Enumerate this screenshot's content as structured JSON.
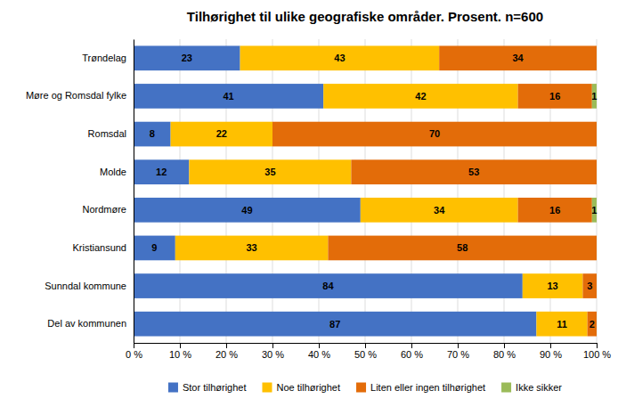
{
  "chart_data": {
    "type": "bar",
    "orientation": "horizontal",
    "stacked": true,
    "title": "Tilhørighet til ulike geografiske områder. Prosent. n=600",
    "categories": [
      "Trøndelag",
      "Møre og Romsdal fylke",
      "Romsdal",
      "Molde",
      "Nordmøre",
      "Kristiansund",
      "Sunndal kommune",
      "Del av kommunen"
    ],
    "series": [
      {
        "name": "Stor tilhørighet",
        "color": "#4472C4",
        "values": [
          23,
          41,
          8,
          12,
          49,
          9,
          84,
          87
        ]
      },
      {
        "name": "Noe tilhørighet",
        "color": "#FFC000",
        "values": [
          43,
          42,
          22,
          35,
          34,
          33,
          13,
          11
        ]
      },
      {
        "name": "Liten eller ingen tilhørighet",
        "color": "#E36C09",
        "values": [
          34,
          16,
          70,
          53,
          16,
          58,
          3,
          2
        ]
      },
      {
        "name": "Ikke sikker",
        "color": "#9BBB59",
        "values": [
          0,
          1,
          0,
          0,
          1,
          0,
          0,
          0
        ]
      }
    ],
    "xlim": [
      0,
      100
    ],
    "xticks": [
      {
        "value": 0,
        "label": "0 %"
      },
      {
        "value": 10,
        "label": "10 %"
      },
      {
        "value": 20,
        "label": "20 %"
      },
      {
        "value": 30,
        "label": "30 %"
      },
      {
        "value": 40,
        "label": "40 %"
      },
      {
        "value": 50,
        "label": "50 %"
      },
      {
        "value": 60,
        "label": "60 %"
      },
      {
        "value": 70,
        "label": "70 %"
      },
      {
        "value": 80,
        "label": "80 %"
      },
      {
        "value": 90,
        "label": "90 %"
      },
      {
        "value": 100,
        "label": "100 %"
      }
    ],
    "grid": true,
    "data_labels": true,
    "legend": "bottom"
  }
}
